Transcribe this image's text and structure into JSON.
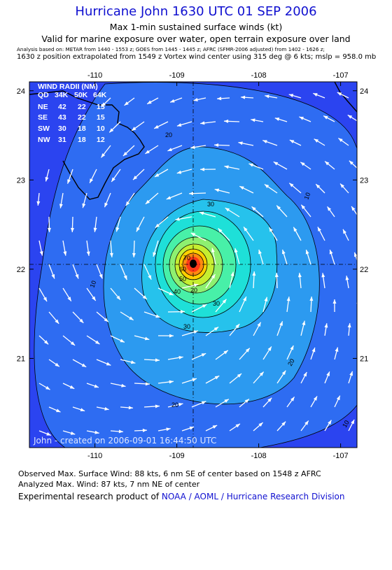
{
  "header": {
    "title": "Hurricane John 1630 UTC 01 SEP 2006",
    "subtitle1": "Max 1-min sustained surface winds (kt)",
    "subtitle2": "Valid for marine exposure over water, open terrain exposure over land",
    "analysis_note": "Analysis based on: METAR from 1440 - 1553 z; GOES from 1445 - 1445 z; AFRC (SFMR-2006 adjusted) from 1402 - 1626 z;",
    "position_note": "1630 z position extrapolated from 1549 z Vortex wind center using 315 deg @ 6 kts; mslp = 958.0 mb"
  },
  "chart_data": {
    "type": "contour",
    "x_ticks": [
      -110,
      -109,
      -108,
      -107
    ],
    "y_ticks": [
      21,
      22,
      23,
      24
    ],
    "xlim": [
      -110.8,
      -106.8
    ],
    "ylim": [
      20.0,
      24.1
    ],
    "storm_center": {
      "lon": -108.9,
      "lat": 22.1
    },
    "contour_labels": [
      "30",
      "20",
      "20",
      "30",
      "40",
      "50",
      "60",
      "70",
      "10",
      "20",
      "10",
      "30",
      "20",
      "10"
    ],
    "wind_radii": {
      "header": "WIND RADII (NM)",
      "columns": [
        "QD",
        "34K",
        "50K",
        "64K"
      ],
      "rows": [
        [
          "NE",
          "42",
          "22",
          "15"
        ],
        [
          "SE",
          "43",
          "22",
          "15"
        ],
        [
          "SW",
          "30",
          "18",
          "10"
        ],
        [
          "NW",
          "31",
          "18",
          "12"
        ]
      ]
    },
    "created_label": "John - created on 2006-09-01 16:44:50 UTC"
  },
  "footer": {
    "observed": "Observed Max. Surface Wind: 88 kts, 6 nm SE of center based on 1548 z AFRC",
    "analyzed": "Analyzed Max. Wind: 87 kts, 7 nm NE of center",
    "credit_prefix": "Experimental research product of ",
    "credit_link": "NOAA / AOML / Hurricane Research Division"
  },
  "colors": {
    "title": "#1010d0",
    "link": "#1010d0",
    "band_outer": "#2b44f0",
    "band_10": "#2e6cf2",
    "band_20": "#2c9af0",
    "band_30": "#26c2ec",
    "band_40": "#1ee0d8",
    "band_50": "#48f0a8",
    "band_60": "#c6ee30",
    "band_70": "#ffd000",
    "band_80": "#ff3a18"
  }
}
